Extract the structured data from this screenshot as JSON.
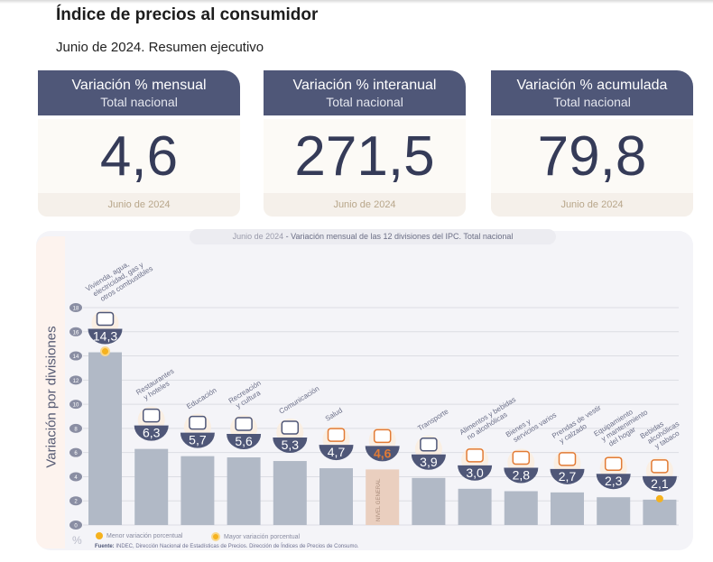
{
  "header": {
    "title": "Índice de precios al consumidor",
    "subtitle": "Junio de 2024. Resumen ejecutivo"
  },
  "cards": [
    {
      "title": "Variación % mensual",
      "subtitle": "Total nacional",
      "value": "4,6",
      "footer": "Junio de 2024"
    },
    {
      "title": "Variación % interanual",
      "subtitle": "Total nacional",
      "value": "271,5",
      "footer": "Junio de 2024"
    },
    {
      "title": "Variación % acumulada",
      "subtitle": "Total nacional",
      "value": "79,8",
      "footer": "Junio de 2024"
    }
  ],
  "colors": {
    "navy": "#4f5778",
    "bar": "#b1b9c6",
    "general_bar": "#eacfbf",
    "accent_orange": "#e27b35",
    "marker_yellow": "#f5b21e"
  },
  "chart_data": {
    "type": "bar",
    "title_date": "Junio de 2024",
    "title": " - Variación mensual de las 12 divisiones del IPC. Total nacional",
    "ylabel": "Variación por divisiones",
    "yunit": "%",
    "ylim": [
      0,
      18
    ],
    "yticks": [
      0,
      2,
      4,
      6,
      8,
      10,
      12,
      14,
      16,
      18
    ],
    "grid": true,
    "categories": [
      "Vivienda, agua, electricidad, gas y otros combustibles",
      "Restaurantes y hoteles",
      "Educación",
      "Recreación y cultura",
      "Comunicación",
      "Salud",
      "Nivel general",
      "Transporte",
      "Alimentos y bebidas no alcohólicas",
      "Bienes y servicios varios",
      "Prendas de vestir y calzado",
      "Equipamiento y mantenimiento del hogar",
      "Bebidas alcohólicas y tabaco"
    ],
    "category_label_lines": [
      [
        "Vivienda, agua,",
        "electricidad, gas y",
        "otros combustibles"
      ],
      [
        "Restaurantes",
        "y hoteles"
      ],
      [
        "Educación"
      ],
      [
        "Recreación",
        "y cultura"
      ],
      [
        "Comunicación"
      ],
      [
        "Salud"
      ],
      [],
      [
        "Transporte"
      ],
      [
        "Alimentos y bebidas",
        "no alcohólicas"
      ],
      [
        "Bienes y",
        "servicios varios"
      ],
      [
        "Prendas de vestir",
        "y calzado"
      ],
      [
        "Equipamiento",
        "y mantenimiento",
        "del hogar"
      ],
      [
        "Bebidas",
        "alcohólicas",
        "y tabaco"
      ]
    ],
    "values": [
      14.3,
      6.3,
      5.7,
      5.6,
      5.3,
      4.7,
      4.6,
      3.9,
      3.0,
      2.8,
      2.7,
      2.3,
      2.1
    ],
    "value_labels": [
      "14,3",
      "6,3",
      "5,7",
      "5,6",
      "5,3",
      "4,7",
      "4,6",
      "3,9",
      "3,0",
      "2,8",
      "2,7",
      "2,3",
      "2,1"
    ],
    "icons": [
      "house-utilities-icon",
      "restaurant-icon",
      "education-icon",
      "recreation-icon",
      "communication-icon",
      "health-icon",
      "general-basket-icon",
      "transport-icon",
      "food-icon",
      "misc-goods-icon",
      "clothing-icon",
      "household-icon",
      "alcohol-tobacco-icon"
    ],
    "general_bar_index": 6,
    "general_bar_label": "NIVEL GENERAL",
    "highest_index": 0,
    "lowest_index": 12,
    "legend": [
      {
        "label": "Menor variación porcentual",
        "marker": "dot"
      },
      {
        "label": "Mayor variación porcentual",
        "marker": "ring"
      }
    ],
    "source_label": "Fuente:",
    "source_text": "INDEC, Dirección Nacional de Estadísticas de Precios. Dirección de Índices de Precios de Consumo."
  }
}
